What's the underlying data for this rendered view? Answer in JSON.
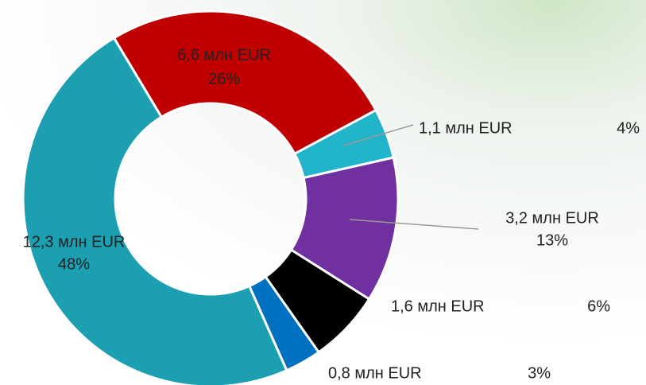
{
  "chart_data": {
    "type": "donut",
    "categories": [
      null,
      null,
      null,
      null,
      null,
      null
    ],
    "values": [
      6.6,
      1.1,
      3.2,
      1.6,
      0.8,
      12.3
    ],
    "value_labels": [
      "6,6 млн EUR",
      "1,1 млн EUR",
      "3,2 млн EUR",
      "1,6 млн EUR",
      "0,8 млн EUR",
      "12,3 млн EUR"
    ],
    "percents": [
      26,
      4,
      13,
      6,
      3,
      48
    ],
    "percent_labels": [
      "26%",
      "4%",
      "13%",
      "6%",
      "3%",
      "48%"
    ],
    "colors": [
      "#c00000",
      "#22b4c9",
      "#7030a0",
      "#000000",
      "#0070c0",
      "#1c9fb0"
    ]
  }
}
